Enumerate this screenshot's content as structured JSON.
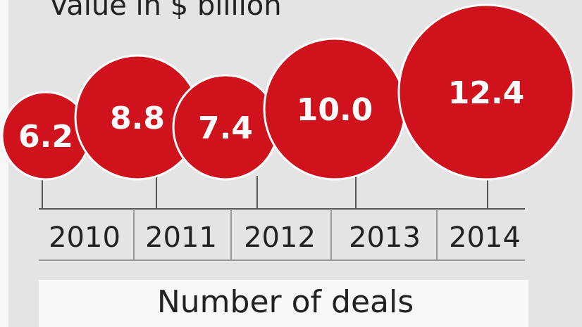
{
  "chart_data": {
    "type": "bubble",
    "title": "Value in $ billion",
    "categories": [
      "2010",
      "2011",
      "2012",
      "2013",
      "2014"
    ],
    "values": [
      6.2,
      8.8,
      7.4,
      10.0,
      12.4
    ],
    "value_labels": [
      "6.2",
      "8.8",
      "7.4",
      "10.0",
      "12.4"
    ],
    "color": "#d0121c",
    "subtitle": "Number of deals"
  }
}
